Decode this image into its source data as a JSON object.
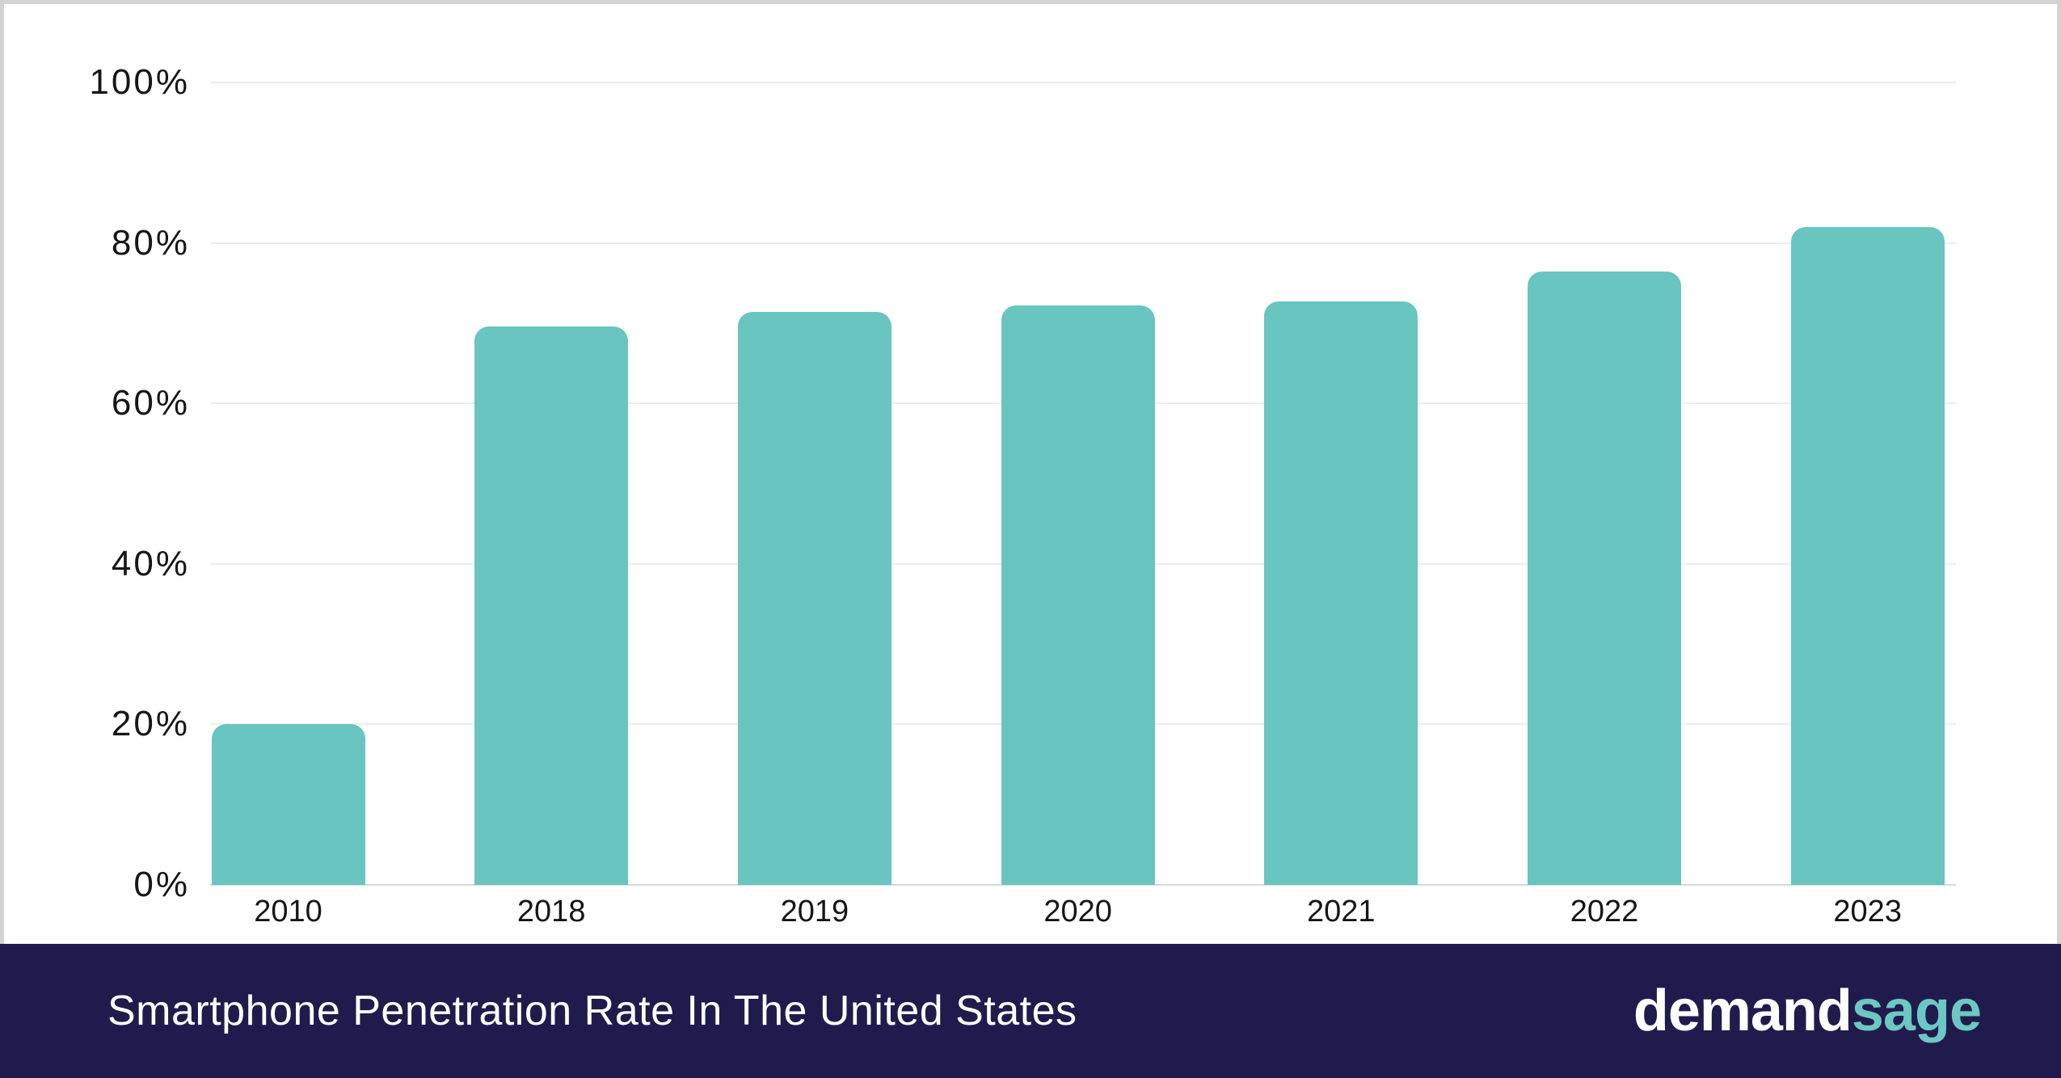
{
  "chart_data": {
    "type": "bar",
    "title": "Smartphone Penetration Rate In The United States",
    "categories": [
      "2010",
      "2018",
      "2019",
      "2020",
      "2021",
      "2022",
      "2023"
    ],
    "values": [
      20,
      69.6,
      71.4,
      72.2,
      72.7,
      76.4,
      82
    ],
    "xlabel": "",
    "ylabel": "",
    "ylim": [
      0,
      100
    ],
    "yticks": [
      "0%",
      "20%",
      "40%",
      "60%",
      "80%",
      "100%"
    ],
    "grid": true,
    "legend": "none",
    "bar_color": "#68C5C0"
  },
  "colors": {
    "bar": "#68C5C0",
    "footer_bg": "#211B4D",
    "footer_text": "#FFFFFF",
    "brand_teal": "#6CC8C3",
    "axis_text": "#161616",
    "gridline": "#EDEDED",
    "baseline": "#D8D8D8",
    "frame_border": "#D3D3D3"
  },
  "footer": {
    "title": "Smartphone Penetration Rate In The United States",
    "brand": {
      "demand": "demand",
      "sage": "sage"
    }
  }
}
